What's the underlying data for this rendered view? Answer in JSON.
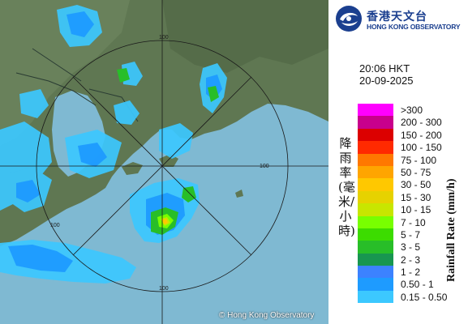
{
  "map": {
    "copyright": "© Hong Kong Observatory",
    "range_ring_labels": [
      "100",
      "100",
      "100",
      "100"
    ]
  },
  "logo": {
    "name_cn": "香港天文台",
    "name_en": "HONG KONG OBSERVATORY",
    "brand_color": "#1b3f8f"
  },
  "timestamp": {
    "time": "20:06 HKT",
    "date": "20-09-2025"
  },
  "legend": {
    "title_cn": "降雨率(毫米/小時)",
    "title_en": "Rainfall Rate (mm/h)",
    "items": [
      {
        "label": ">300",
        "color": "#ff00ff"
      },
      {
        "label": "200 - 300",
        "color": "#c8008c"
      },
      {
        "label": "150 - 200",
        "color": "#dc0000"
      },
      {
        "label": "100 - 150",
        "color": "#ff2a00"
      },
      {
        "label": "75 - 100",
        "color": "#ff7800"
      },
      {
        "label": "50 - 75",
        "color": "#ffa500"
      },
      {
        "label": "30 - 50",
        "color": "#ffc800"
      },
      {
        "label": "15 - 30",
        "color": "#e6d200"
      },
      {
        "label": "10 - 15",
        "color": "#c8e600"
      },
      {
        "label": "7 - 10",
        "color": "#78ff00"
      },
      {
        "label": "5 - 7",
        "color": "#3cdc00"
      },
      {
        "label": "3 - 5",
        "color": "#28be28"
      },
      {
        "label": "2 - 3",
        "color": "#189650"
      },
      {
        "label": "1 - 2",
        "color": "#3c82ff"
      },
      {
        "label": "0.50 - 1",
        "color": "#1e9bff"
      },
      {
        "label": "0.15 - 0.50",
        "color": "#3cc8ff"
      }
    ]
  }
}
